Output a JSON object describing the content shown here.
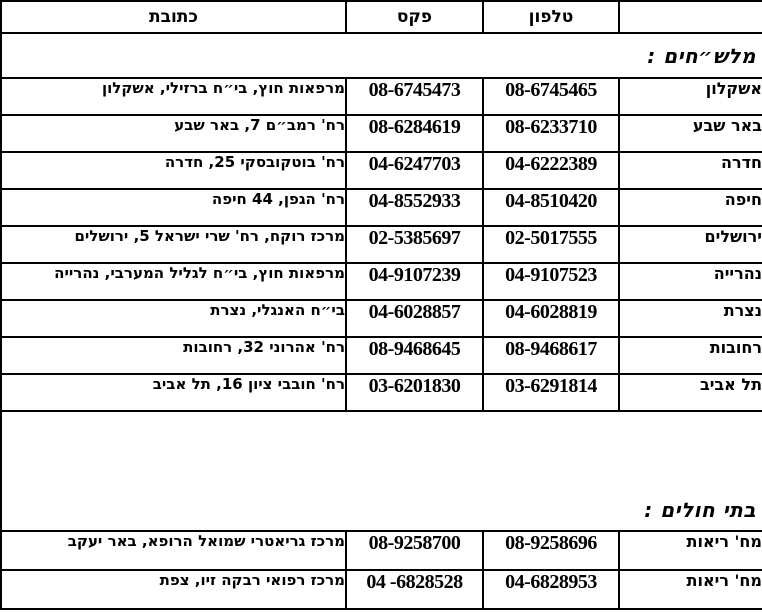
{
  "table": {
    "headers": {
      "city": "",
      "phone": "טלפון",
      "fax": "פקס",
      "address": "כתובת"
    },
    "sections": [
      {
        "title": "מלש״חים :",
        "rows": [
          {
            "city": "אשקלון",
            "phone": "08-6745465",
            "fax": "08-6745473",
            "address": "מרפאות חוץ, בי״ח ברזילי, אשקלון"
          },
          {
            "city": "באר שבע",
            "phone": "08-6233710",
            "fax": "08-6284619",
            "address": "רח' רמב״ם 7, באר שבע"
          },
          {
            "city": "חדרה",
            "phone": "04-6222389",
            "fax": "04-6247703",
            "address": "רח' בוטקובסקי 25, חדרה"
          },
          {
            "city": "חיפה",
            "phone": "04-8510420",
            "fax": "04-8552933",
            "address": "רח' הגפן, 44 חיפה"
          },
          {
            "city": "ירושלים",
            "phone": "02-5017555",
            "fax": "02-5385697",
            "address": "מרכז רוקח, רח' שרי ישראל 5, ירושלים"
          },
          {
            "city": "נהרייה",
            "phone": "04-9107523",
            "fax": "04-9107239",
            "address": "מרפאות חוץ, בי״ח לגליל המערבי, נהרייה"
          },
          {
            "city": "נצרת",
            "phone": "04-6028819",
            "fax": "04-6028857",
            "address": "בי״ח האנגלי, נצרת"
          },
          {
            "city": "רחובות",
            "phone": "08-9468617",
            "fax": "08-9468645",
            "address": "רח' אהרוני 32,  רחובות"
          },
          {
            "city": "תל אביב",
            "phone": "03-6291814",
            "fax": "03-6201830",
            "address": "רח' חובבי ציון 16, תל אביב"
          }
        ]
      },
      {
        "title": "בתי חולים :",
        "rows": [
          {
            "city": "מח' ריאות",
            "phone": "08-9258696",
            "fax": "08-9258700",
            "address": "מרכז גריאטרי שמואל הרופא, באר יעקב"
          },
          {
            "city": "מח' ריאות",
            "phone": "04-6828953",
            "fax": "04 -6828528",
            "address": "מרכז רפואי רבקה זיו, צפת"
          }
        ]
      }
    ]
  }
}
